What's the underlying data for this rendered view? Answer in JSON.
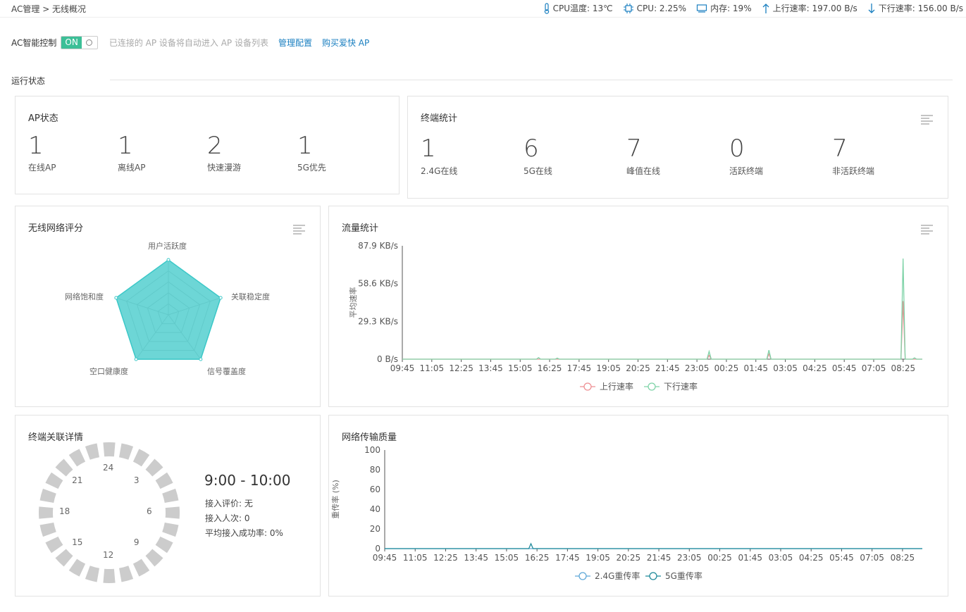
{
  "header": {
    "breadcrumb": "AC管理 > 无线概况",
    "cpu_temp": "CPU温度: 13℃",
    "cpu": "CPU: 2.25%",
    "memory": "内存: 19%",
    "upload": "上行速率: 197.00 B/s",
    "download": "下行速率: 156.00 B/s",
    "icons": [
      "thermometer-icon",
      "cpu-chip-icon",
      "memory-icon",
      "arrow-up-icon",
      "arrow-down-icon"
    ]
  },
  "ac_control": {
    "label": "AC智能控制",
    "toggle_on": "ON",
    "hint": "已连接的 AP 设备将自动进入 AP 设备列表",
    "manage_link": "管理配置",
    "buy_link": "购买爱快 AP",
    "accent": "#3cbf97"
  },
  "section": {
    "title": "运行状态"
  },
  "ap_status": {
    "title": "AP状态",
    "items": [
      {
        "value": "1",
        "label": "在线AP"
      },
      {
        "value": "1",
        "label": "离线AP"
      },
      {
        "value": "2",
        "label": "快速漫游"
      },
      {
        "value": "1",
        "label": "5G优先"
      }
    ]
  },
  "terminal_stats": {
    "title": "终端统计",
    "items": [
      {
        "value": "1",
        "label": "2.4G在线"
      },
      {
        "value": "6",
        "label": "5G在线"
      },
      {
        "value": "7",
        "label": "峰值在线"
      },
      {
        "value": "0",
        "label": "活跃终端"
      },
      {
        "value": "7",
        "label": "非活跃终端"
      }
    ]
  },
  "network_score": {
    "title": "无线网络评分",
    "axes": [
      "用户活跃度",
      "关联稳定度",
      "信号覆盖度",
      "空口健康度",
      "网络饱和度"
    ],
    "values": [
      1,
      1,
      1,
      1,
      1
    ],
    "color": "#3cc8c8"
  },
  "traffic": {
    "title": "流量统计",
    "ylabel": "平均速率",
    "yticks": [
      "0 B/s",
      "29.3 KB/s",
      "58.6 KB/s",
      "87.9 KB/s"
    ],
    "ymax": 87.9,
    "xticks": [
      "09:45",
      "11:05",
      "12:25",
      "13:45",
      "15:05",
      "16:25",
      "17:45",
      "19:05",
      "20:25",
      "21:45",
      "23:05",
      "00:25",
      "01:45",
      "03:05",
      "04:25",
      "05:45",
      "07:05",
      "08:25"
    ],
    "legend_up": "上行速率",
    "legend_down": "下行速率",
    "up_color": "#ee8f93",
    "down_color": "#7fd3a8",
    "down_peaks": [
      {
        "x": 0.262,
        "y": 1.2
      },
      {
        "x": 0.298,
        "y": 0.8
      },
      {
        "x": 0.59,
        "y": 6.0
      },
      {
        "x": 0.705,
        "y": 7.0
      },
      {
        "x": 0.963,
        "y": 78.0
      },
      {
        "x": 0.985,
        "y": 1.0
      }
    ],
    "up_peaks": [
      {
        "x": 0.59,
        "y": 3.0
      },
      {
        "x": 0.705,
        "y": 4.0
      },
      {
        "x": 0.963,
        "y": 45.0
      }
    ]
  },
  "terminal_assoc": {
    "title": "终端关联详情",
    "clock_numbers": [
      "24",
      "3",
      "6",
      "9",
      "12",
      "15",
      "18",
      "21"
    ],
    "segments": 24,
    "time_range": "9:00 - 10:00",
    "rating": "接入评价:  无",
    "count": "接入人次: 0",
    "success_rate": "平均接入成功率: 0%",
    "segment_color": "#cccccc"
  },
  "transmission": {
    "title": "网络传输质量",
    "ylabel": "重传率 (%)",
    "yticks": [
      "0",
      "20",
      "40",
      "60",
      "80",
      "100"
    ],
    "ymax": 100,
    "xticks": [
      "09:45",
      "11:05",
      "12:25",
      "13:45",
      "15:05",
      "16:25",
      "17:45",
      "19:05",
      "20:25",
      "21:45",
      "23:05",
      "00:25",
      "01:45",
      "03:05",
      "04:25",
      "05:45",
      "07:05",
      "08:25"
    ],
    "legend_24": "2.4G重传率",
    "legend_5": "5G重传率",
    "color_24": "#5fa8d8",
    "color_5": "#1f8a9a",
    "peaks_5": [
      {
        "x": 0.272,
        "y": 5.0
      }
    ]
  }
}
